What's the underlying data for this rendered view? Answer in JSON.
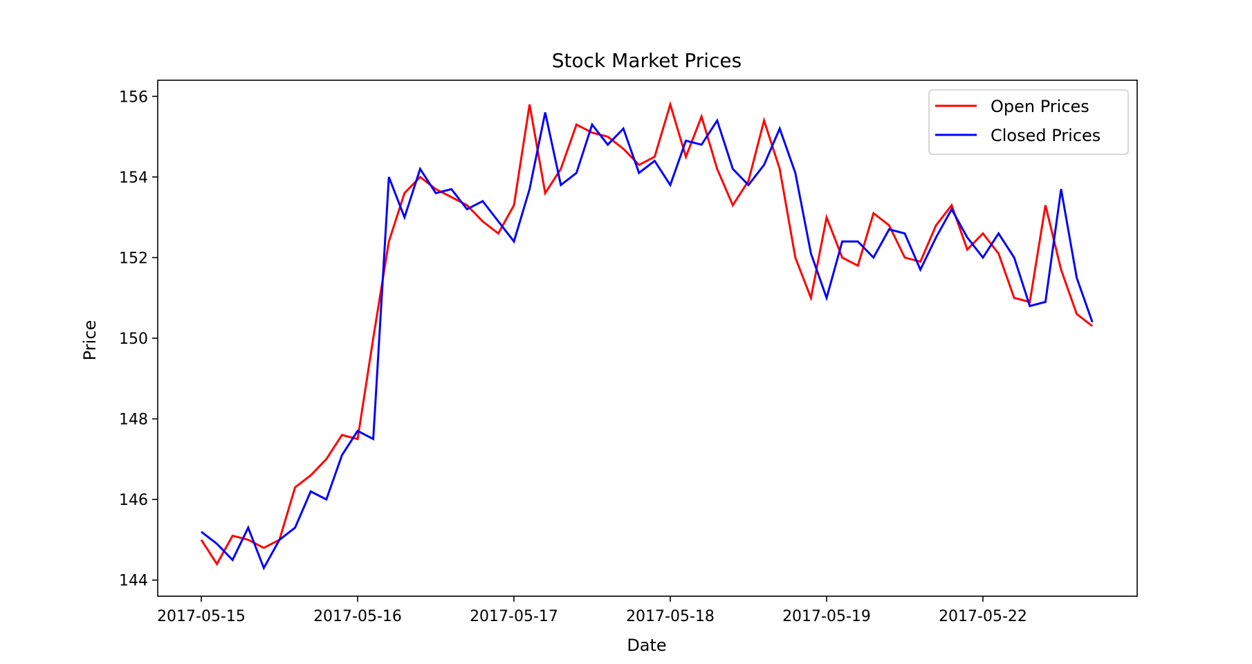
{
  "chart_data": {
    "type": "line",
    "title": "Stock Market Prices",
    "xlabel": "Date",
    "ylabel": "Price",
    "ylim": [
      143.6,
      156.4
    ],
    "y_ticks": [
      144,
      146,
      148,
      150,
      152,
      154,
      156
    ],
    "x_ticks": [
      {
        "label": "2017-05-15",
        "index": 0
      },
      {
        "label": "2017-05-16",
        "index": 10
      },
      {
        "label": "2017-05-17",
        "index": 20
      },
      {
        "label": "2017-05-18",
        "index": 30
      },
      {
        "label": "2017-05-19",
        "index": 40
      },
      {
        "label": "2017-05-22",
        "index": 50
      }
    ],
    "x_count": 58,
    "grid": false,
    "legend_position": "top-right",
    "series": [
      {
        "name": "Open Prices",
        "color": "#ff0000",
        "values": [
          145.0,
          144.4,
          145.1,
          145.0,
          144.8,
          145.0,
          146.3,
          146.6,
          147.0,
          147.6,
          147.5,
          150.0,
          152.4,
          153.6,
          154.0,
          153.7,
          153.5,
          153.3,
          152.9,
          152.6,
          153.3,
          155.8,
          153.6,
          154.2,
          155.3,
          155.1,
          155.0,
          154.7,
          154.3,
          154.5,
          155.8,
          154.5,
          155.5,
          154.2,
          153.3,
          153.9,
          155.4,
          154.2,
          152.0,
          151.0,
          153.0,
          152.0,
          151.8,
          153.1,
          152.8,
          152.0,
          151.9,
          152.8,
          153.3,
          152.2,
          152.6,
          152.1,
          151.0,
          150.9,
          153.3,
          151.7,
          150.6,
          150.3
        ]
      },
      {
        "name": "Closed Prices",
        "color": "#0000ff",
        "values": [
          145.2,
          144.9,
          144.5,
          145.3,
          144.3,
          145.0,
          145.3,
          146.2,
          146.0,
          147.1,
          147.7,
          147.5,
          154.0,
          153.0,
          154.2,
          153.6,
          153.7,
          153.2,
          153.4,
          152.9,
          152.4,
          153.7,
          155.6,
          153.8,
          154.1,
          155.3,
          154.8,
          155.2,
          154.1,
          154.4,
          153.8,
          154.9,
          154.8,
          155.4,
          154.2,
          153.8,
          154.3,
          155.2,
          154.1,
          152.1,
          151.0,
          152.4,
          152.4,
          152.0,
          152.7,
          152.6,
          151.7,
          152.5,
          153.2,
          152.5,
          152.0,
          152.6,
          152.0,
          150.8,
          150.9,
          153.7,
          151.5,
          150.4
        ]
      }
    ]
  }
}
